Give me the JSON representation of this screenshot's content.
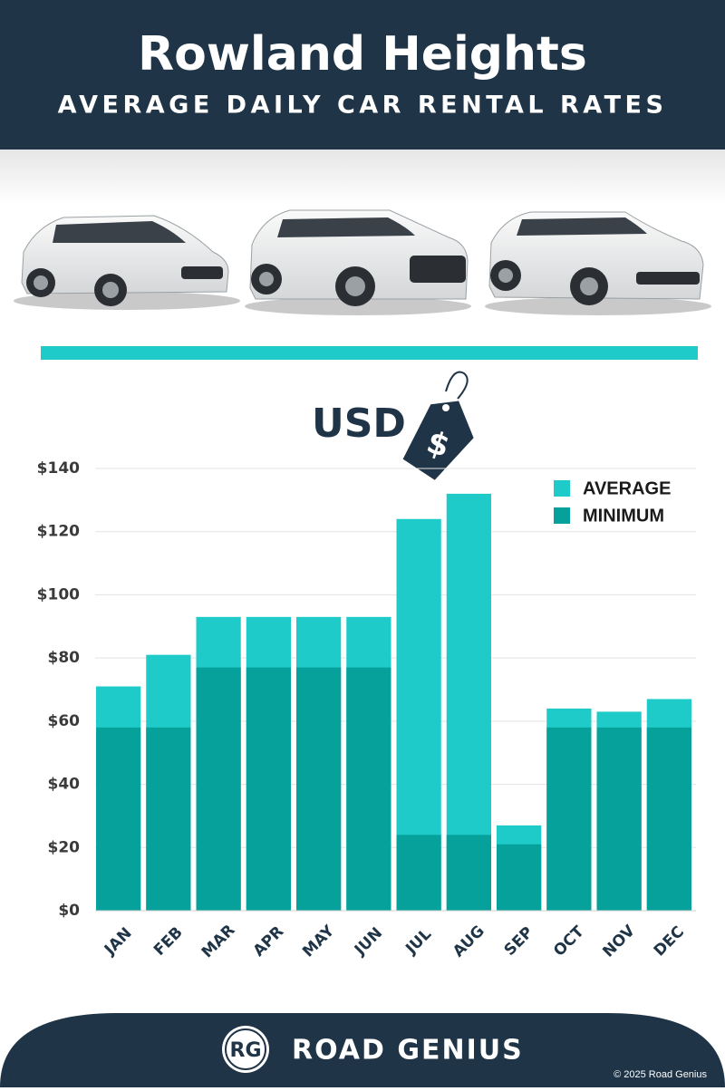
{
  "header": {
    "title": "Rowland Heights",
    "subtitle": "AVERAGE DAILY CAR RENTAL RATES"
  },
  "currency": {
    "label": "USD",
    "tag_symbol": "$"
  },
  "chart_data": {
    "type": "bar",
    "categories": [
      "JAN",
      "FEB",
      "MAR",
      "APR",
      "MAY",
      "JUN",
      "JUL",
      "AUG",
      "SEP",
      "OCT",
      "NOV",
      "DEC"
    ],
    "series": [
      {
        "name": "AVERAGE",
        "color": "#1ecbc8",
        "values": [
          71,
          81,
          93,
          93,
          93,
          93,
          124,
          132,
          27,
          64,
          63,
          67
        ]
      },
      {
        "name": "MINIMUM",
        "color": "#06a19b",
        "values": [
          58,
          58,
          77,
          77,
          77,
          77,
          24,
          24,
          21,
          58,
          58,
          58
        ]
      }
    ],
    "ylim": [
      0,
      140
    ],
    "yticks": [
      {
        "value": 0,
        "label": "$0"
      },
      {
        "value": 20,
        "label": "$20"
      },
      {
        "value": 40,
        "label": "$40"
      },
      {
        "value": 60,
        "label": "$60"
      },
      {
        "value": 80,
        "label": "$80"
      },
      {
        "value": 100,
        "label": "$100"
      },
      {
        "value": 120,
        "label": "$120"
      },
      {
        "value": 140,
        "label": "$140"
      }
    ],
    "grid": true,
    "legend": "top-right"
  },
  "footer": {
    "logo": "RG",
    "brand": "ROAD GENIUS",
    "copyright": "© 2025 Road Genius"
  }
}
